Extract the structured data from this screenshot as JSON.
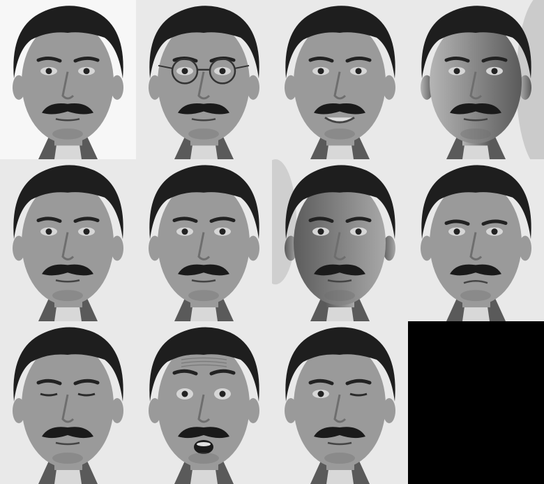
{
  "grid": {
    "rows": 3,
    "columns": 4
  },
  "tiles": [
    {
      "row": 1,
      "col": 1,
      "variant": "normal",
      "light": "center",
      "background": "white"
    },
    {
      "row": 1,
      "col": 2,
      "variant": "glasses",
      "light": "center",
      "background": "textured-wall"
    },
    {
      "row": 1,
      "col": 3,
      "variant": "happy",
      "light": "center",
      "background": "textured-wall"
    },
    {
      "row": 1,
      "col": 4,
      "variant": "leftlight",
      "light": "left",
      "background": "textured-wall"
    },
    {
      "row": 2,
      "col": 1,
      "variant": "noglasses",
      "light": "center",
      "background": "textured-wall"
    },
    {
      "row": 2,
      "col": 2,
      "variant": "normal",
      "light": "center",
      "background": "textured-wall"
    },
    {
      "row": 2,
      "col": 3,
      "variant": "rightlight",
      "light": "right",
      "background": "textured-wall"
    },
    {
      "row": 2,
      "col": 4,
      "variant": "sad",
      "light": "center",
      "background": "textured-wall"
    },
    {
      "row": 3,
      "col": 1,
      "variant": "sleepy",
      "light": "center",
      "background": "textured-wall"
    },
    {
      "row": 3,
      "col": 2,
      "variant": "surprised",
      "light": "center",
      "background": "textured-wall"
    },
    {
      "row": 3,
      "col": 3,
      "variant": "wink",
      "light": "center",
      "background": "textured-wall"
    },
    {
      "row": 3,
      "col": 4,
      "variant": "empty",
      "light": "none",
      "background": "black"
    }
  ],
  "colors": {
    "hair": "#1e1e1e",
    "skin": "#9a9a9a",
    "skin_shadow": "#6e6e6e",
    "mustache": "#1a1a1a",
    "wall": "#e9e9e9",
    "empty_tile": "#000000"
  }
}
